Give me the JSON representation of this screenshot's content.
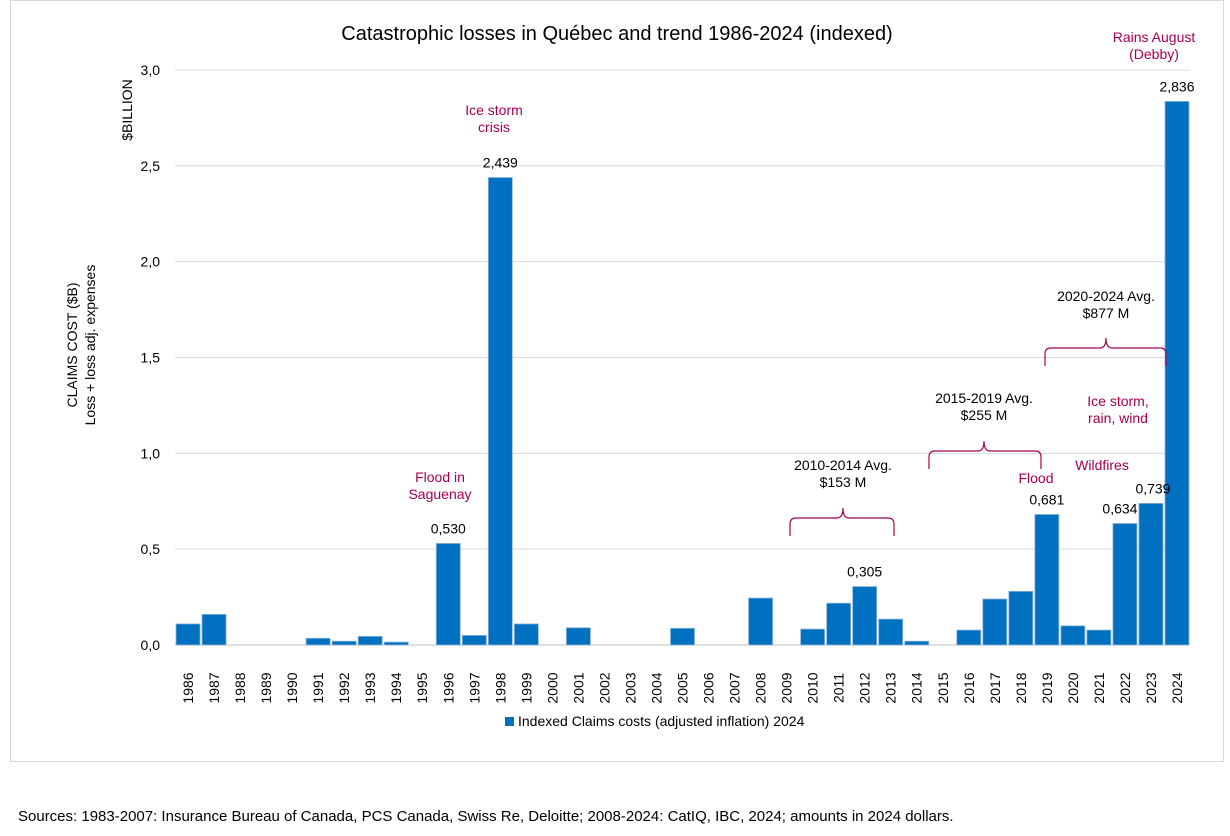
{
  "chart_data": {
    "type": "bar",
    "title": "Catastrophic losses in Québec and trend 1986-2024 (indexed)",
    "unit_label": "$BILLION",
    "ylabel": [
      "CLAIMS COST ($B)",
      "Loss + loss adj. expenses"
    ],
    "ylim": [
      0,
      3.0
    ],
    "yticks": [
      "0,0",
      "0,5",
      "1,0",
      "1,5",
      "2,0",
      "2,5",
      "3,0"
    ],
    "grid": true,
    "legend_position": "bottom",
    "bar_color": "#0070C0",
    "annotation_color": "#A50050",
    "categories": [
      "1986",
      "1987",
      "1988",
      "1989",
      "1990",
      "1991",
      "1992",
      "1993",
      "1994",
      "1995",
      "1996",
      "1997",
      "1998",
      "1999",
      "2000",
      "2001",
      "2002",
      "2003",
      "2004",
      "2005",
      "2006",
      "2007",
      "2008",
      "2009",
      "2010",
      "2011",
      "2012",
      "2013",
      "2014",
      "2015",
      "2016",
      "2017",
      "2018",
      "2019",
      "2020",
      "2021",
      "2022",
      "2023",
      "2024"
    ],
    "series": [
      {
        "name": "Indexed Claims costs (adjusted inflation) 2024",
        "values": [
          0.11,
          0.16,
          0,
          0,
          0,
          0.035,
          0.02,
          0.045,
          0.015,
          0,
          0.53,
          0.05,
          2.439,
          0.11,
          0,
          0.09,
          0,
          0,
          0,
          0.087,
          0,
          0,
          0.245,
          0,
          0.083,
          0.218,
          0.305,
          0.135,
          0.02,
          0,
          0.078,
          0.24,
          0.28,
          0.681,
          0.1,
          0.078,
          0.634,
          0.739,
          2.836
        ]
      }
    ],
    "data_labels": [
      {
        "year": "1996",
        "text": "0,530"
      },
      {
        "year": "1998",
        "text": "2,439"
      },
      {
        "year": "2012",
        "text": "0,305"
      },
      {
        "year": "2019",
        "text": "0,681"
      },
      {
        "year": "2022",
        "text": "0,634"
      },
      {
        "year": "2023",
        "text": "0,739"
      },
      {
        "year": "2024",
        "text": "2,836"
      }
    ],
    "event_annotations": [
      {
        "lines": [
          "Flood in",
          "Saguenay"
        ]
      },
      {
        "lines": [
          "Ice storm",
          "crisis"
        ]
      },
      {
        "lines": [
          "Flood"
        ]
      },
      {
        "lines": [
          "Wildfires"
        ]
      },
      {
        "lines": [
          "Ice storm,",
          "rain, wind"
        ]
      },
      {
        "lines": [
          "Rains August",
          "(Debby)"
        ]
      }
    ],
    "period_averages": [
      {
        "period": "2010-2014 Avg.",
        "value": "$153 M"
      },
      {
        "period": "2015-2019 Avg.",
        "value": "$255 M"
      },
      {
        "period": "2020-2024 Avg.",
        "value": "$877 M"
      }
    ]
  },
  "source": "Sources: 1983-2007: Insurance Bureau of Canada, PCS Canada, Swiss Re, Deloitte; 2008-2024: CatIQ, IBC, 2024; amounts in 2024 dollars."
}
